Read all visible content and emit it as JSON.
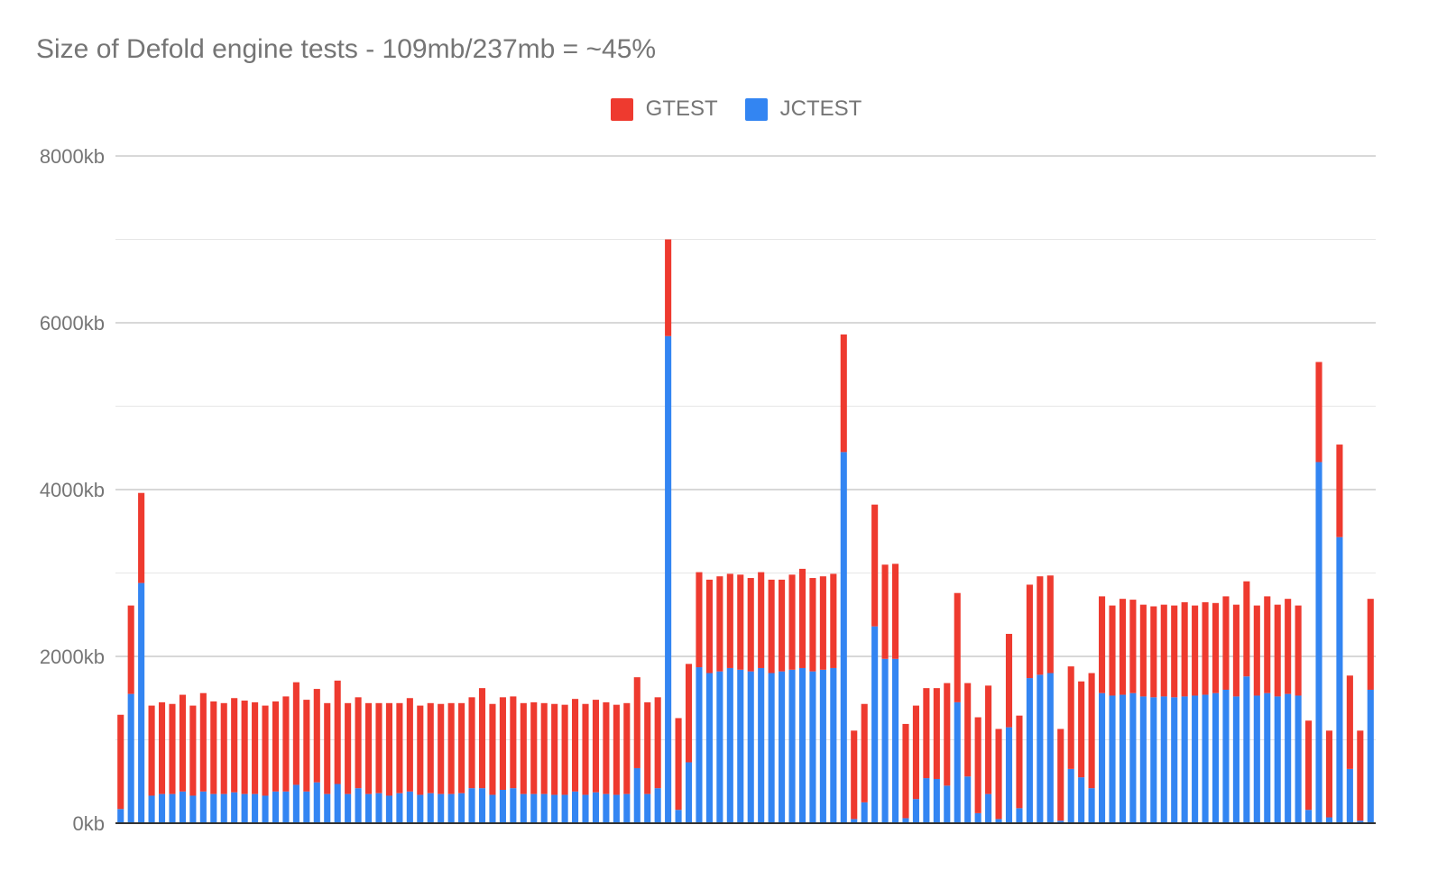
{
  "title": "Size of Defold engine tests - 109mb/237mb = ~45%",
  "chart_data": {
    "type": "bar",
    "stacked": true,
    "title": "Size of Defold engine tests - 109mb/237mb = ~45%",
    "xlabel": "",
    "ylabel": "",
    "ylim": [
      0,
      8000
    ],
    "y_ticks": [
      "0kb",
      "2000kb",
      "4000kb",
      "6000kb",
      "8000kb"
    ],
    "grid": true,
    "legend": "top-center",
    "series": [
      {
        "name": "JCTEST",
        "color": "#3385f2",
        "values": [
          170,
          1550,
          2880,
          330,
          350,
          350,
          380,
          330,
          380,
          350,
          350,
          370,
          350,
          350,
          330,
          380,
          380,
          460,
          380,
          490,
          350,
          470,
          350,
          420,
          350,
          360,
          330,
          360,
          380,
          340,
          360,
          350,
          350,
          360,
          420,
          420,
          340,
          400,
          420,
          350,
          350,
          350,
          340,
          340,
          380,
          340,
          370,
          350,
          340,
          350,
          660,
          350,
          420,
          5840,
          160,
          730,
          1870,
          1800,
          1820,
          1860,
          1840,
          1820,
          1860,
          1800,
          1820,
          1840,
          1860,
          1820,
          1840,
          1860,
          4450,
          50,
          250,
          2360,
          1970,
          1970,
          60,
          290,
          540,
          530,
          450,
          1450,
          560,
          120,
          350,
          50,
          1150,
          180,
          1740,
          1780,
          1800,
          30,
          650,
          550,
          420,
          1560,
          1530,
          1540,
          1560,
          1520,
          1510,
          1520,
          1510,
          1520,
          1530,
          1540,
          1560,
          1600,
          1520,
          1760,
          1530,
          1560,
          1520,
          1550,
          1530,
          160,
          4330,
          70,
          3430,
          650,
          30,
          1600
        ]
      },
      {
        "name": "GTEST",
        "color": "#ee3a2f",
        "values": [
          1130,
          1060,
          1080,
          1080,
          1100,
          1080,
          1160,
          1080,
          1180,
          1110,
          1090,
          1130,
          1120,
          1100,
          1080,
          1080,
          1140,
          1230,
          1100,
          1120,
          1090,
          1240,
          1090,
          1090,
          1090,
          1080,
          1110,
          1080,
          1120,
          1070,
          1080,
          1080,
          1090,
          1080,
          1090,
          1200,
          1090,
          1110,
          1100,
          1090,
          1100,
          1090,
          1090,
          1080,
          1110,
          1090,
          1110,
          1100,
          1080,
          1090,
          1090,
          1100,
          1090,
          1160,
          1100,
          1180,
          1140,
          1120,
          1140,
          1130,
          1140,
          1120,
          1150,
          1120,
          1100,
          1140,
          1190,
          1120,
          1120,
          1130,
          1410,
          1060,
          1180,
          1460,
          1130,
          1140,
          1130,
          1120,
          1080,
          1090,
          1230,
          1310,
          1120,
          1150,
          1300,
          1080,
          1120,
          1110,
          1120,
          1180,
          1170,
          1100,
          1230,
          1150,
          1380,
          1160,
          1080,
          1150,
          1120,
          1100,
          1090,
          1100,
          1100,
          1130,
          1080,
          1110,
          1080,
          1120,
          1100,
          1140,
          1080,
          1160,
          1100,
          1140,
          1080,
          1070,
          1200,
          1040,
          1110,
          1120,
          1080,
          1090
        ]
      }
    ]
  }
}
